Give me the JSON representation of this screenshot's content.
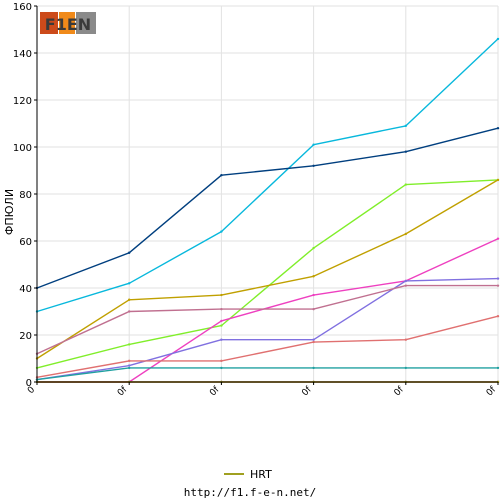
{
  "chart_data": {
    "type": "line",
    "ylabel": "ФПЮЛИ",
    "x_tick_labels": [
      "0",
      "0f",
      "0f",
      "0f",
      "0f",
      "0f"
    ],
    "ylim": [
      0,
      160
    ],
    "y_ticks": [
      0,
      20,
      40,
      60,
      80,
      100,
      120,
      140,
      160
    ],
    "grid": true,
    "legend_position": "bottom",
    "x": [
      0,
      1,
      2,
      3,
      4,
      5
    ],
    "series": [
      {
        "color": "#08b8dc",
        "values": [
          30,
          42,
          64,
          101,
          109,
          146
        ]
      },
      {
        "color": "#003f7f",
        "values": [
          40,
          55,
          88,
          92,
          98,
          108
        ]
      },
      {
        "color": "#80ee2a",
        "values": [
          6,
          16,
          24,
          57,
          84,
          86
        ]
      },
      {
        "color": "#c0a000",
        "values": [
          10,
          35,
          37,
          45,
          63,
          86
        ]
      },
      {
        "color": "#ee40c0",
        "values": [
          0,
          0,
          26,
          37,
          43,
          61
        ]
      },
      {
        "color": "#8070e0",
        "values": [
          1,
          7,
          18,
          18,
          43,
          44
        ]
      },
      {
        "color": "#c07090",
        "values": [
          12,
          30,
          31,
          31,
          41,
          41
        ]
      },
      {
        "color": "#e07070",
        "values": [
          2,
          9,
          9,
          17,
          18,
          28
        ]
      },
      {
        "color": "#20a0a0",
        "values": [
          1,
          6,
          6,
          6,
          6,
          6
        ]
      },
      {
        "color": "#c04000",
        "values": [
          0,
          0,
          0,
          0,
          0,
          0
        ]
      },
      {
        "name": "HRT",
        "color": "#a0a020",
        "values": [
          0,
          0,
          0,
          0,
          0,
          0
        ]
      }
    ]
  },
  "legend": {
    "items": [
      {
        "label": "HRT",
        "color": "#a0a020"
      }
    ]
  },
  "logo": {
    "text": "F1EN"
  },
  "footer": {
    "url": "http://f1.f-e-n.net/"
  }
}
